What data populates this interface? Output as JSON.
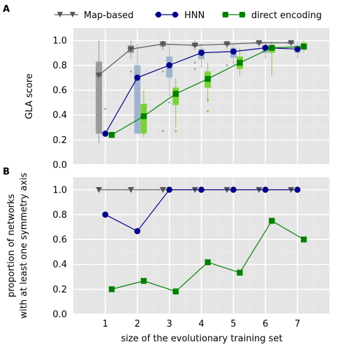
{
  "panel_labels": [
    "A",
    "B"
  ],
  "legend": [
    {
      "label": "Map-based",
      "color": "#555555",
      "marker": "triangle-down"
    },
    {
      "label": "HNN",
      "color": "#00008b",
      "marker": "circle"
    },
    {
      "label": "direct encoding",
      "color": "#008000",
      "marker": "square"
    }
  ],
  "chart_data": [
    {
      "type": "line",
      "panel": "A",
      "title": "",
      "xlabel": "",
      "ylabel": "GLA score",
      "xlim": [
        0,
        8
      ],
      "ylim": [
        0,
        1.1
      ],
      "yticks": [
        "0.0",
        "0.2",
        "0.4",
        "0.6",
        "0.8",
        "1.0"
      ],
      "ytick_values": [
        0,
        0.2,
        0.4,
        0.6,
        0.8,
        1.0
      ],
      "grid": true,
      "series": [
        {
          "name": "Map-based",
          "color": "#555555",
          "marker": "triangle-down",
          "x": [
            0.8,
            1.8,
            2.8,
            3.8,
            4.8,
            5.8,
            6.8
          ],
          "values": [
            0.72,
            0.93,
            0.97,
            0.96,
            0.97,
            0.98,
            0.98
          ]
        },
        {
          "name": "HNN",
          "color": "#00008b",
          "marker": "circle",
          "x": [
            1.0,
            2.0,
            3.0,
            4.0,
            5.0,
            6.0,
            7.0
          ],
          "values": [
            0.25,
            0.7,
            0.8,
            0.9,
            0.91,
            0.94,
            0.93
          ]
        },
        {
          "name": "direct encoding",
          "color": "#008000",
          "marker": "square",
          "x": [
            1.2,
            2.2,
            3.2,
            4.2,
            5.2,
            6.2,
            7.2
          ],
          "values": [
            0.24,
            0.39,
            0.57,
            0.69,
            0.82,
            0.94,
            0.95
          ]
        }
      ],
      "boxes": [
        {
          "series": "Map-based",
          "x": [
            0.8,
            1.8,
            2.8,
            3.8,
            4.8,
            5.8,
            6.8
          ],
          "q1": [
            0.25,
            0.9,
            0.95,
            0.95,
            0.96,
            0.97,
            0.97
          ],
          "median": [
            0.72,
            0.93,
            0.97,
            0.96,
            0.97,
            0.98,
            0.98
          ],
          "q3": [
            0.83,
            0.96,
            0.98,
            0.98,
            0.99,
            0.99,
            0.99
          ],
          "whisker_low": [
            0.17,
            0.85,
            0.92,
            0.92,
            0.93,
            0.95,
            0.95
          ],
          "whisker_high": [
            1.0,
            1.0,
            1.0,
            1.0,
            1.0,
            1.0,
            1.0
          ],
          "outliers": [
            [],
            [
              0.75
            ],
            [
              0.75,
              0.27
            ],
            [
              0.77,
              0.82
            ],
            [
              0.8
            ],
            [],
            []
          ]
        },
        {
          "series": "HNN",
          "x": [
            1.0,
            2.0,
            3.0,
            4.0,
            5.0,
            6.0,
            7.0
          ],
          "q1": [
            0.25,
            0.25,
            0.7,
            0.85,
            0.86,
            0.9,
            0.9
          ],
          "median": [
            0.25,
            0.7,
            0.8,
            0.9,
            0.91,
            0.94,
            0.93
          ],
          "q3": [
            0.25,
            0.8,
            0.87,
            0.93,
            0.94,
            0.96,
            0.96
          ],
          "whisker_low": [
            0.25,
            0.25,
            0.55,
            0.78,
            0.8,
            0.85,
            0.85
          ],
          "whisker_high": [
            0.25,
            0.97,
            0.97,
            0.98,
            0.98,
            0.99,
            0.99
          ],
          "outliers": [
            [
              0.45
            ],
            [
              0.43,
              0.72
            ],
            [
              0.5
            ],
            [],
            [],
            [],
            []
          ]
        },
        {
          "series": "direct encoding",
          "x": [
            1.2,
            2.2,
            3.2,
            4.2,
            5.2,
            6.2,
            7.2
          ],
          "q1": [
            0.22,
            0.25,
            0.48,
            0.62,
            0.77,
            0.9,
            0.93
          ],
          "median": [
            0.24,
            0.39,
            0.57,
            0.69,
            0.82,
            0.94,
            0.95
          ],
          "q3": [
            0.25,
            0.49,
            0.62,
            0.75,
            0.87,
            0.96,
            0.98
          ],
          "whisker_low": [
            0.21,
            0.22,
            0.3,
            0.5,
            0.72,
            0.72,
            0.9
          ],
          "whisker_high": [
            0.26,
            0.6,
            0.7,
            0.82,
            0.94,
            0.99,
            1.0
          ],
          "outliers": [
            [],
            [],
            [
              0.27
            ],
            [
              0.43,
              0.52
            ],
            [],
            [],
            []
          ]
        }
      ]
    },
    {
      "type": "line",
      "panel": "B",
      "title": "",
      "xlabel": "size of the evolutionary training set",
      "ylabel": "proportion of networks\nwith at least one symmetry axis",
      "xlim": [
        0,
        8
      ],
      "ylim": [
        0,
        1.1
      ],
      "xticks": [
        "1",
        "2",
        "3",
        "4",
        "5",
        "6",
        "7"
      ],
      "xtick_values": [
        1,
        2,
        3,
        4,
        5,
        6,
        7
      ],
      "yticks": [
        "0.0",
        "0.2",
        "0.4",
        "0.6",
        "0.8",
        "1.0"
      ],
      "ytick_values": [
        0,
        0.2,
        0.4,
        0.6,
        0.8,
        1.0
      ],
      "grid": true,
      "series": [
        {
          "name": "Map-based",
          "color": "#555555",
          "marker": "triangle-down",
          "x": [
            0.8,
            1.8,
            2.8,
            3.8,
            4.8,
            5.8,
            6.8
          ],
          "values": [
            1.0,
            1.0,
            1.0,
            1.0,
            1.0,
            1.0,
            1.0
          ]
        },
        {
          "name": "HNN",
          "color": "#00008b",
          "marker": "circle",
          "x": [
            1.0,
            2.0,
            3.0,
            4.0,
            5.0,
            6.0,
            7.0
          ],
          "values": [
            0.8,
            0.667,
            1.0,
            1.0,
            1.0,
            1.0,
            1.0
          ]
        },
        {
          "name": "direct encoding",
          "color": "#008000",
          "marker": "square",
          "x": [
            1.2,
            2.2,
            3.2,
            4.2,
            5.2,
            6.2,
            7.2
          ],
          "values": [
            0.2,
            0.267,
            0.182,
            0.417,
            0.333,
            0.75,
            0.6
          ]
        }
      ]
    }
  ]
}
